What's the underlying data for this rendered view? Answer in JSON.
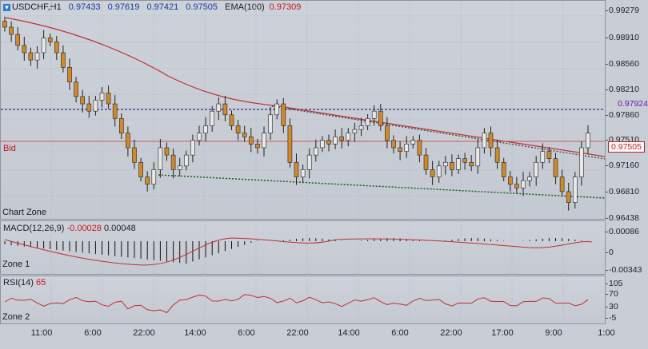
{
  "chart": {
    "symbol": "USDCHF,H1",
    "open": "0.97433",
    "high": "0.97619",
    "low": "0.97421",
    "close": "0.97505",
    "ema_label": "EMA(100)",
    "ema_value": "0.97309",
    "bid_label": "Bid",
    "bid_price": "0.97505",
    "hline_price": "0.97924",
    "zone_label": "Chart Zone",
    "price_ticks": [
      "0.99279",
      "0.98910",
      "0.98560",
      "0.98210",
      "0.97860",
      "0.97510",
      "0.97160",
      "0.96810",
      "0.96438"
    ],
    "colors": {
      "bull": "#e8e8e8",
      "bear": "#d08a2a",
      "ema": "#c03030",
      "hline": "#3a2a8a",
      "support": "#1a5a1a",
      "resistance": "#3a3a3a"
    }
  },
  "macd": {
    "label": "MACD(12,26,9)",
    "value1": "-0.00028",
    "value2": "0.00048",
    "zone_label": "Zone 1",
    "ticks": [
      "0.00086",
      "0",
      "-0.00343"
    ]
  },
  "rsi": {
    "label": "RSI(14)",
    "value": "65",
    "zone_label": "Zone 2",
    "ticks": [
      "105",
      "70",
      "30",
      "-5"
    ]
  },
  "time_axis": [
    "11:00",
    "6:00",
    "22:00",
    "14:00",
    "6:00",
    "22:00",
    "14:00",
    "6:00",
    "22:00",
    "17:00",
    "9:00",
    "1:00"
  ],
  "chart_data": {
    "type": "candlestick",
    "y_range": [
      0.96438,
      0.99279
    ],
    "close_series": [
      0.9905,
      0.9895,
      0.988,
      0.987,
      0.986,
      0.987,
      0.989,
      0.9885,
      0.987,
      0.985,
      0.983,
      0.981,
      0.98,
      0.979,
      0.9805,
      0.9815,
      0.98,
      0.978,
      0.976,
      0.974,
      0.972,
      0.97,
      0.969,
      0.971,
      0.974,
      0.973,
      0.971,
      0.9715,
      0.973,
      0.975,
      0.976,
      0.977,
      0.979,
      0.98,
      0.9785,
      0.977,
      0.976,
      0.9755,
      0.9745,
      0.974,
      0.976,
      0.9785,
      0.98,
      0.977,
      0.972,
      0.97,
      0.971,
      0.973,
      0.974,
      0.975,
      0.9745,
      0.9755,
      0.975,
      0.976,
      0.9765,
      0.977,
      0.978,
      0.979,
      0.977,
      0.975,
      0.974,
      0.9735,
      0.9745,
      0.975,
      0.973,
      0.971,
      0.97,
      0.9715,
      0.972,
      0.971,
      0.9725,
      0.972,
      0.9715,
      0.974,
      0.976,
      0.974,
      0.972,
      0.97,
      0.969,
      0.9685,
      0.9695,
      0.97,
      0.972,
      0.9735,
      0.9725,
      0.97,
      0.968,
      0.9665,
      0.97,
      0.974,
      0.976
    ]
  }
}
